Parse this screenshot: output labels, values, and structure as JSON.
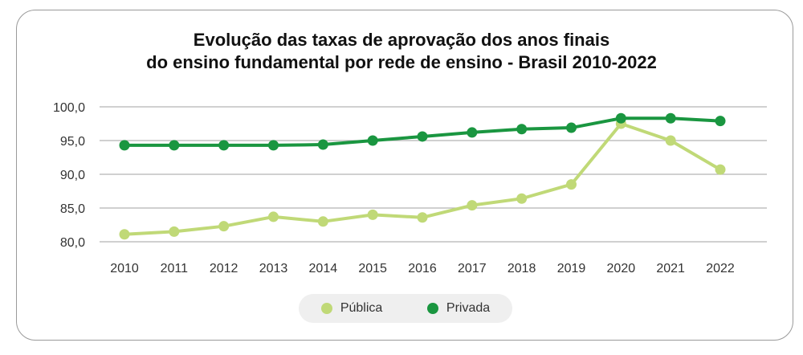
{
  "chart_data": {
    "type": "line",
    "title_line1": "Evolução das taxas de aprovação dos anos finais",
    "title_line2": "do ensino fundamental por rede de ensino - Brasil 2010-2022",
    "x": [
      "2010",
      "2011",
      "2012",
      "2013",
      "2014",
      "2015",
      "2016",
      "2017",
      "2018",
      "2019",
      "2020",
      "2021",
      "2022"
    ],
    "ylim": [
      80,
      100
    ],
    "yticks": [
      "80,0",
      "85,0",
      "90,0",
      "95,0",
      "100,0"
    ],
    "ytick_values": [
      80,
      85,
      90,
      95,
      100
    ],
    "grid": true,
    "legend_position": "bottom",
    "series": [
      {
        "name": "Pública",
        "color": "#c0d977",
        "values": [
          81.1,
          81.5,
          82.3,
          83.7,
          83.0,
          84.0,
          83.6,
          85.4,
          86.4,
          88.5,
          97.5,
          95.0,
          90.7
        ]
      },
      {
        "name": "Privada",
        "color": "#1a9640",
        "values": [
          94.3,
          94.3,
          94.3,
          94.3,
          94.4,
          95.0,
          95.6,
          96.2,
          96.7,
          96.9,
          98.3,
          98.3,
          97.9
        ]
      }
    ]
  }
}
